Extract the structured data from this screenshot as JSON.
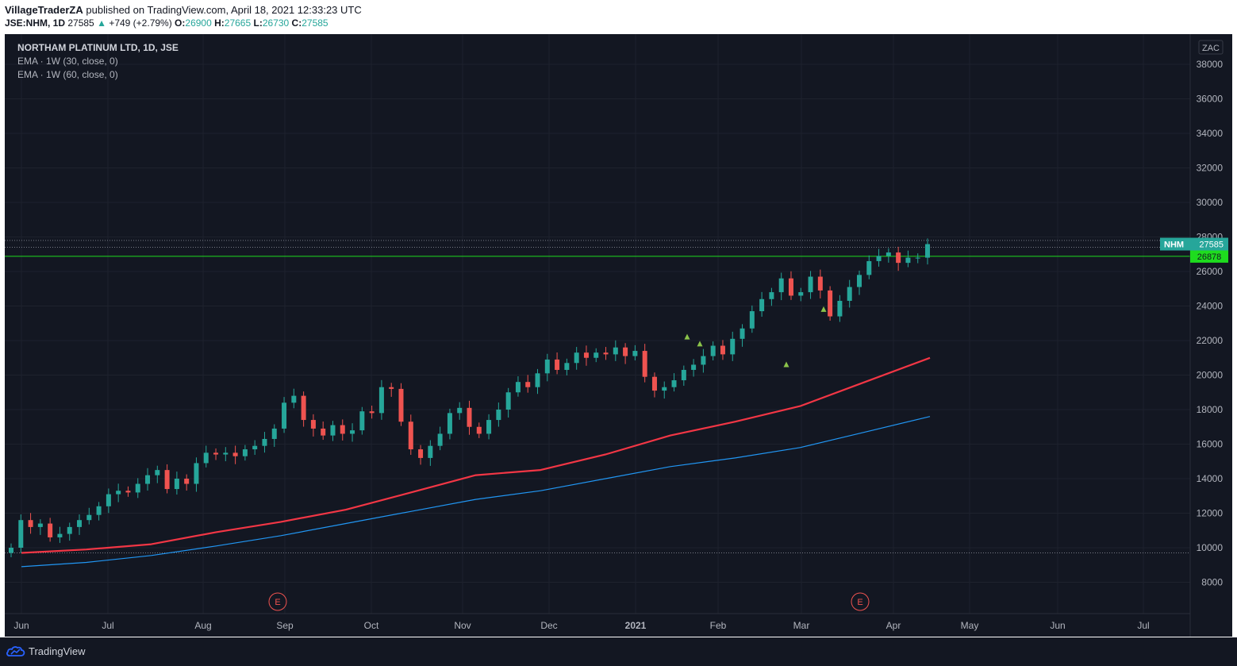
{
  "header": {
    "author": "VillageTraderZA",
    "published_text": "published on TradingView.com, April 18, 2021 12:33:23 UTC",
    "symbol": "JSE:NHM, 1D",
    "last": "27585",
    "change": "+749 (+2.79%)",
    "o_label": "O:",
    "o_value": "26900",
    "h_label": "H:",
    "h_value": "27665",
    "l_label": "L:",
    "l_value": "26730",
    "c_label": "C:",
    "c_value": "27585"
  },
  "legend": {
    "title": "NORTHAM PLATINUM LTD, 1D, JSE",
    "ema1": "EMA · 1W (30, close, 0)",
    "ema2": "EMA · 1W (60, close, 0)"
  },
  "footer": {
    "brand": "TradingView"
  },
  "colors": {
    "background": "#131722",
    "up": "#26a69a",
    "down": "#ef5350",
    "ema30": "#f23645",
    "ema60": "#2196f3",
    "hline": "#1edc1e"
  },
  "chart_data": {
    "type": "candlestick",
    "currency": "ZAC",
    "ylim": [
      7000,
      39000
    ],
    "y_ticks": [
      8000,
      10000,
      12000,
      14000,
      16000,
      18000,
      20000,
      22000,
      24000,
      26000,
      28000,
      30000,
      32000,
      34000,
      36000,
      38000
    ],
    "x_ticks": [
      "Jun",
      "Jul",
      "Aug",
      "Sep",
      "Oct",
      "Nov",
      "Dec",
      "2021",
      "Feb",
      "Mar",
      "Apr",
      "May",
      "Jun",
      "Jul"
    ],
    "earnings_markers": [
      "E",
      "E"
    ],
    "price_label": {
      "symbol": "NHM",
      "value": "27585"
    },
    "horizontal_line": {
      "value": 26878,
      "label": "26878"
    },
    "dotted_levels": [
      27800,
      27400,
      9700
    ],
    "signal_markers": [
      22200,
      21800,
      23800,
      20600
    ],
    "series": [
      {
        "name": "EMA 1W 30",
        "values": [
          9700,
          9900,
          10200,
          10900,
          11500,
          12200,
          13200,
          14200,
          14500,
          15400,
          16500,
          17300,
          18200,
          19600,
          21000
        ]
      },
      {
        "name": "EMA 1W 60",
        "values": [
          8900,
          9150,
          9550,
          10100,
          10700,
          11400,
          12100,
          12800,
          13300,
          14000,
          14700,
          15200,
          15800,
          16700,
          17600
        ]
      },
      {
        "name": "close",
        "values": [
          10000,
          11600,
          11200,
          11400,
          10600,
          10800,
          11200,
          11600,
          11900,
          12400,
          13100,
          13300,
          13200,
          13700,
          14200,
          14500,
          13400,
          14000,
          13700,
          14900,
          15500,
          15400,
          15500,
          15300,
          15700,
          15900,
          16300,
          16900,
          18400,
          18800,
          17400,
          16900,
          16500,
          17100,
          16600,
          16800,
          17900,
          17800,
          19300,
          19200,
          17300,
          15700,
          15200,
          15900,
          16600,
          17800,
          18100,
          17000,
          16600,
          17400,
          18000,
          19000,
          19600,
          19300,
          20100,
          20900,
          20300,
          20700,
          21300,
          21000,
          21300,
          21200,
          21600,
          21100,
          21400,
          19900,
          19100,
          19300,
          19700,
          20300,
          20600,
          21100,
          21700,
          21200,
          22100,
          22700,
          23700,
          24400,
          24800,
          25600,
          24600,
          24800,
          25700,
          24900,
          23400,
          24300,
          25100,
          25800,
          26600,
          26900,
          27100,
          26500,
          26800,
          26800,
          27585
        ]
      }
    ]
  }
}
